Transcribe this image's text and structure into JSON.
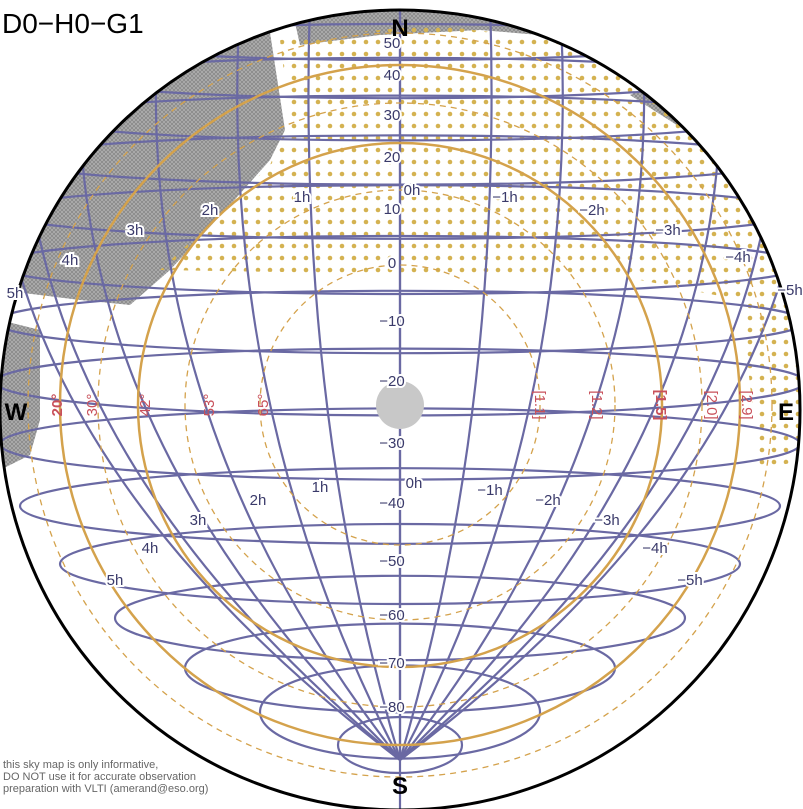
{
  "title": "D0−H0−G1",
  "compass": {
    "north": "N",
    "south": "S",
    "east": "E",
    "west": "W"
  },
  "declination_labels": [
    "50",
    "40",
    "30",
    "20",
    "10",
    "0",
    "−10",
    "−20",
    "−30",
    "−40",
    "−50",
    "−60",
    "−70",
    "−80"
  ],
  "hour_angle_labels_upper": [
    "5h",
    "4h",
    "3h",
    "2h",
    "1h",
    "0h",
    "−1h",
    "−2h",
    "−3h",
    "−4h",
    "−5h"
  ],
  "hour_angle_labels_lower": [
    "5h",
    "4h",
    "3h",
    "2h",
    "1h",
    "0h",
    "−1h",
    "−2h",
    "−3h",
    "−4h",
    "−5h"
  ],
  "altitude_labels": [
    "20°",
    "30°",
    "42°",
    "53°",
    "65°"
  ],
  "airmass_labels": [
    "[1.1]",
    "[1.2]",
    "[1.5]",
    "[2.0]",
    "[2.9]"
  ],
  "disclaimer": [
    "this sky map is only informative,",
    "DO NOT use it for accurate observation",
    "preparation with VLTI (amerand@eso.org)"
  ],
  "colors": {
    "grid": "#6a69a3",
    "altitude_circle": "#d4a24c",
    "altitude_text": "#c8505a",
    "shadow_hatch": "#9a9a9a",
    "dots": "#d4b251",
    "zenith": "#c8c8c8"
  }
}
